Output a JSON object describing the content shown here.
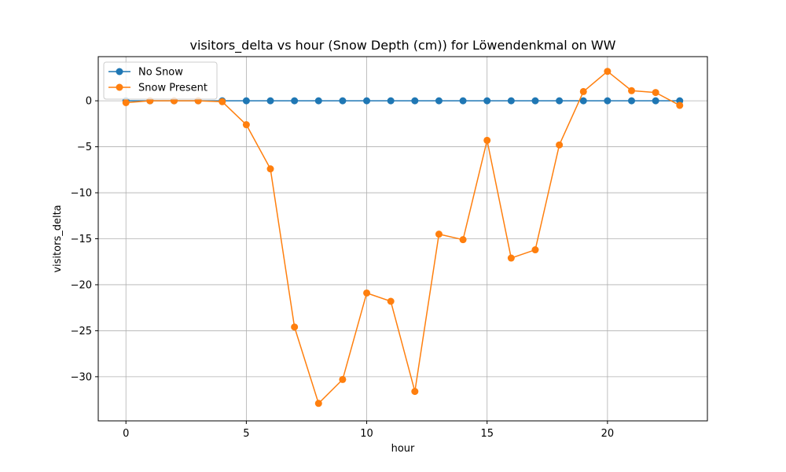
{
  "chart_data": {
    "type": "line",
    "title": "visitors_delta vs hour (Snow Depth (cm)) for Löwendenkmal on WW",
    "xlabel": "hour",
    "ylabel": "visitors_delta",
    "xlim": [
      -1.15,
      24.15
    ],
    "ylim": [
      -34.8,
      4.8
    ],
    "xticks": [
      0,
      5,
      10,
      15,
      20
    ],
    "yticks": [
      0,
      -5,
      -10,
      -15,
      -20,
      -25,
      -30
    ],
    "grid": true,
    "legend_position": "top-left",
    "x": [
      0,
      1,
      2,
      3,
      4,
      5,
      6,
      7,
      8,
      9,
      10,
      11,
      12,
      13,
      14,
      15,
      16,
      17,
      18,
      19,
      20,
      21,
      22,
      23
    ],
    "series": [
      {
        "name": "No Snow",
        "color": "#1f77b4",
        "values": [
          0,
          0,
          0,
          0,
          0,
          0,
          0,
          0,
          0,
          0,
          0,
          0,
          0,
          0,
          0,
          0,
          0,
          0,
          0,
          0,
          0,
          0,
          0,
          0
        ]
      },
      {
        "name": "Snow Present",
        "color": "#ff7f0e",
        "values": [
          -0.2,
          0,
          0,
          0,
          -0.1,
          -2.6,
          -7.4,
          -24.6,
          -32.9,
          -30.3,
          -20.9,
          -21.8,
          -31.6,
          -14.5,
          -15.1,
          -4.3,
          -17.1,
          -16.2,
          -4.8,
          1,
          3.2,
          1.1,
          0.9,
          -0.5
        ]
      }
    ]
  }
}
